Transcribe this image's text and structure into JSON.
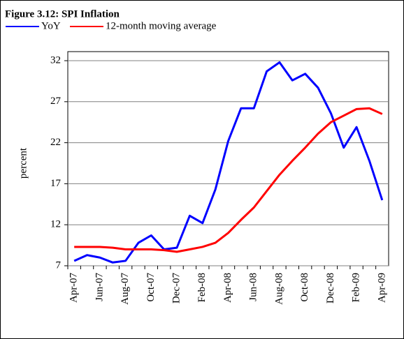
{
  "chart_data": {
    "type": "line",
    "title": "Figure 3.12: SPI Inflation",
    "ylabel": "percent",
    "categories": [
      "Apr-07",
      null,
      "Jun-07",
      null,
      "Aug-07",
      null,
      "Oct-07",
      null,
      "Dec-07",
      null,
      "Feb-08",
      null,
      "Apr-08",
      null,
      "Jun-08",
      null,
      "Aug-08",
      null,
      "Oct-08",
      null,
      "Dec-08",
      null,
      "Feb-09",
      null,
      "Apr-09"
    ],
    "series": [
      {
        "name": "YoY",
        "color": "#0000ff",
        "values": [
          7.6,
          8.3,
          8.0,
          7.4,
          7.6,
          9.8,
          10.7,
          9.0,
          9.2,
          13.1,
          12.2,
          16.3,
          22.2,
          26.2,
          26.2,
          30.7,
          31.8,
          29.6,
          30.4,
          28.7,
          25.6,
          21.4,
          23.9,
          19.8,
          15.0
        ]
      },
      {
        "name": "12-month moving average",
        "color": "#ff0000",
        "values": [
          9.3,
          9.3,
          9.3,
          9.2,
          9.0,
          9.0,
          9.0,
          8.9,
          8.7,
          9.0,
          9.3,
          9.8,
          11.0,
          12.6,
          14.1,
          16.1,
          18.1,
          19.8,
          21.4,
          23.1,
          24.5,
          25.3,
          26.1,
          26.2,
          25.5
        ]
      }
    ],
    "ylim": [
      7,
      32
    ],
    "yticks": [
      7,
      12,
      17,
      22,
      27,
      32
    ],
    "grid": true
  }
}
